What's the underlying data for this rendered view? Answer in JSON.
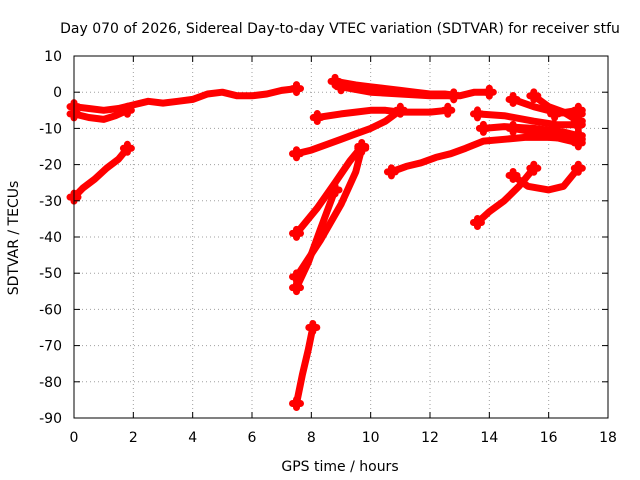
{
  "chart_data": {
    "type": "scatter",
    "title": "Day 070 of 2026, Sidereal Day-to-day VTEC variation (SDTVAR) for receiver stfu",
    "xlabel": "GPS time / hours",
    "ylabel": "SDTVAR / TECUs",
    "xlim": [
      0,
      18
    ],
    "ylim": [
      -90,
      10
    ],
    "xticks": [
      0,
      2,
      4,
      6,
      8,
      10,
      12,
      14,
      16,
      18
    ],
    "yticks": [
      10,
      0,
      -10,
      -20,
      -30,
      -40,
      -50,
      -60,
      -70,
      -80,
      -90
    ],
    "grid": true,
    "marker": "+",
    "color": "#ff0000",
    "series": [
      {
        "points": [
          [
            0,
            -4
          ],
          [
            0.5,
            -4.5
          ],
          [
            1,
            -5
          ],
          [
            1.5,
            -4.5
          ],
          [
            2,
            -3.5
          ],
          [
            2.5,
            -2.5
          ],
          [
            3,
            -3
          ],
          [
            3.5,
            -2.5
          ],
          [
            4,
            -2
          ],
          [
            4.5,
            -0.5
          ],
          [
            5,
            0
          ],
          [
            5.5,
            -1
          ],
          [
            6,
            -1
          ],
          [
            6.5,
            -0.5
          ],
          [
            7,
            0.5
          ],
          [
            7.5,
            1
          ]
        ]
      },
      {
        "points": [
          [
            0,
            -6
          ],
          [
            0.5,
            -7
          ],
          [
            1,
            -7.5
          ],
          [
            1.4,
            -6.5
          ],
          [
            1.8,
            -5
          ]
        ]
      },
      {
        "points": [
          [
            0,
            -29
          ],
          [
            0.3,
            -26.5
          ],
          [
            0.7,
            -24
          ],
          [
            1.1,
            -21
          ],
          [
            1.5,
            -18.5
          ],
          [
            1.8,
            -15.5
          ]
        ]
      },
      {
        "points": [
          [
            7.5,
            -17
          ],
          [
            8,
            -16
          ],
          [
            8.5,
            -14.5
          ],
          [
            9,
            -13
          ],
          [
            9.5,
            -11.5
          ],
          [
            10,
            -10
          ],
          [
            10.5,
            -8
          ],
          [
            11,
            -5
          ]
        ]
      },
      {
        "points": [
          [
            8.2,
            -7
          ],
          [
            9,
            -6
          ],
          [
            9.5,
            -5.5
          ],
          [
            10,
            -5
          ],
          [
            10.5,
            -5
          ],
          [
            11,
            -5.5
          ],
          [
            11.5,
            -5.5
          ],
          [
            12,
            -5.5
          ],
          [
            12.6,
            -5
          ]
        ]
      },
      {
        "points": [
          [
            8.8,
            3
          ],
          [
            9.5,
            2
          ],
          [
            10,
            1.5
          ],
          [
            10.5,
            1
          ],
          [
            11,
            0.5
          ],
          [
            11.5,
            0
          ],
          [
            12,
            -0.5
          ],
          [
            12.5,
            -0.5
          ],
          [
            13,
            -1
          ],
          [
            13.5,
            0
          ],
          [
            14,
            0
          ]
        ]
      },
      {
        "points": [
          [
            9,
            1.5
          ],
          [
            10,
            0
          ],
          [
            11,
            -0.5
          ],
          [
            12,
            -1
          ],
          [
            12.8,
            -1
          ]
        ]
      },
      {
        "points": [
          [
            7.5,
            -39
          ],
          [
            8.2,
            -32
          ],
          [
            8.8,
            -25
          ],
          [
            9.3,
            -19
          ],
          [
            9.7,
            -15
          ]
        ]
      },
      {
        "points": [
          [
            7.5,
            -51
          ],
          [
            8.3,
            -41
          ],
          [
            9,
            -31
          ],
          [
            9.5,
            -22
          ],
          [
            9.7,
            -15.5
          ]
        ]
      },
      {
        "points": [
          [
            7.5,
            -54
          ],
          [
            7.9,
            -47
          ],
          [
            8.3,
            -38
          ],
          [
            8.8,
            -27
          ]
        ]
      },
      {
        "points": [
          [
            7.5,
            -86
          ],
          [
            7.7,
            -78
          ],
          [
            7.9,
            -71
          ],
          [
            8.05,
            -65
          ]
        ]
      },
      {
        "points": [
          [
            10.7,
            -22
          ],
          [
            11.2,
            -20.5
          ],
          [
            11.7,
            -19.5
          ],
          [
            12.2,
            -18
          ],
          [
            12.7,
            -17
          ],
          [
            13.2,
            -15.5
          ],
          [
            13.8,
            -13.5
          ],
          [
            14.5,
            -13
          ],
          [
            15.2,
            -12.5
          ],
          [
            16,
            -12.5
          ],
          [
            17,
            -13
          ]
        ]
      },
      {
        "points": [
          [
            13.6,
            -36
          ],
          [
            14,
            -33
          ],
          [
            14.5,
            -30
          ],
          [
            15,
            -26
          ],
          [
            15.5,
            -21
          ]
        ]
      },
      {
        "points": [
          [
            14.8,
            -23
          ],
          [
            15.3,
            -26
          ],
          [
            16,
            -27
          ],
          [
            16.5,
            -26
          ],
          [
            17,
            -21
          ]
        ]
      },
      {
        "points": [
          [
            13.6,
            -6
          ],
          [
            14.5,
            -6.5
          ],
          [
            15.5,
            -8
          ],
          [
            16.3,
            -9
          ],
          [
            17,
            -9
          ]
        ]
      },
      {
        "points": [
          [
            13.8,
            -10
          ],
          [
            14.5,
            -9.5
          ],
          [
            15.5,
            -10
          ],
          [
            16.5,
            -11
          ],
          [
            17,
            -12
          ]
        ]
      },
      {
        "points": [
          [
            14.8,
            -10
          ],
          [
            15.5,
            -11
          ],
          [
            16.5,
            -13
          ],
          [
            17,
            -14
          ]
        ]
      },
      {
        "points": [
          [
            14.8,
            -2
          ],
          [
            15.5,
            -4
          ],
          [
            16.2,
            -5.5
          ],
          [
            17,
            -6
          ]
        ]
      },
      {
        "points": [
          [
            15.5,
            -1
          ],
          [
            16,
            -4
          ],
          [
            16.5,
            -5.5
          ],
          [
            17,
            -8
          ]
        ]
      },
      {
        "points": [
          [
            16.2,
            -6
          ],
          [
            17,
            -5
          ]
        ]
      }
    ]
  }
}
